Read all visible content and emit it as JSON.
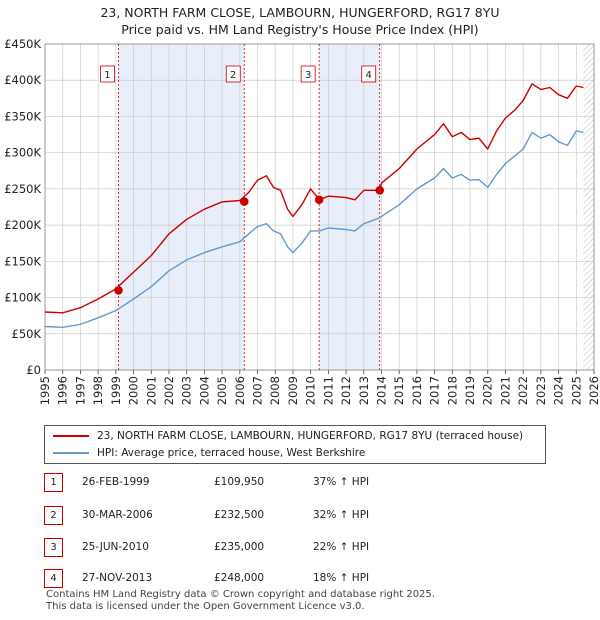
{
  "title_line1": "23, NORTH FARM CLOSE, LAMBOURN, HUNGERFORD, RG17 8YU",
  "title_line2": "Price paid vs. HM Land Registry's House Price Index (HPI)",
  "chart_data": {
    "type": "line",
    "title": "23, NORTH FARM CLOSE, LAMBOURN, HUNGERFORD, RG17 8YU — Price paid vs. HM Land Registry's House Price Index (HPI)",
    "xlim": [
      1995,
      2026
    ],
    "ylim": [
      0,
      450000
    ],
    "x_ticks": [
      "1995",
      "1996",
      "1997",
      "1998",
      "1999",
      "2000",
      "2001",
      "2002",
      "2003",
      "2004",
      "2005",
      "2006",
      "2007",
      "2008",
      "2009",
      "2010",
      "2011",
      "2012",
      "2013",
      "2014",
      "2015",
      "2016",
      "2017",
      "2018",
      "2019",
      "2020",
      "2021",
      "2022",
      "2023",
      "2024",
      "2025",
      "2026"
    ],
    "y_ticks": [
      {
        "value": 0,
        "label": "£0"
      },
      {
        "value": 50000,
        "label": "£50K"
      },
      {
        "value": 100000,
        "label": "£100K"
      },
      {
        "value": 150000,
        "label": "£150K"
      },
      {
        "value": 200000,
        "label": "£200K"
      },
      {
        "value": 250000,
        "label": "£250K"
      },
      {
        "value": 300000,
        "label": "£300K"
      },
      {
        "value": 350000,
        "label": "£350K"
      },
      {
        "value": 400000,
        "label": "£400K"
      },
      {
        "value": 450000,
        "label": "£450K"
      }
    ],
    "shaded_periods": [
      [
        1999.15,
        2006.25
      ],
      [
        2010.48,
        2013.9
      ]
    ],
    "data_end_x": 2025.4,
    "series": [
      {
        "name": "23, NORTH FARM CLOSE, LAMBOURN, HUNGERFORD, RG17 8YU (terraced house)",
        "color": "#cc0000",
        "points": [
          [
            1995,
            80000
          ],
          [
            1996,
            79000
          ],
          [
            1997,
            86000
          ],
          [
            1998,
            98000
          ],
          [
            1999,
            112000
          ],
          [
            2000,
            135000
          ],
          [
            2001,
            158000
          ],
          [
            2002,
            188000
          ],
          [
            2003,
            208000
          ],
          [
            2004,
            222000
          ],
          [
            2005,
            232000
          ],
          [
            2006,
            234000
          ],
          [
            2006.5,
            245000
          ],
          [
            2007,
            262000
          ],
          [
            2007.5,
            268000
          ],
          [
            2007.9,
            252000
          ],
          [
            2008.3,
            248000
          ],
          [
            2008.7,
            222000
          ],
          [
            2009,
            212000
          ],
          [
            2009.5,
            228000
          ],
          [
            2010,
            250000
          ],
          [
            2010.5,
            235000
          ],
          [
            2011,
            240000
          ],
          [
            2012,
            238000
          ],
          [
            2012.5,
            235000
          ],
          [
            2013,
            248000
          ],
          [
            2013.9,
            248000
          ],
          [
            2014,
            258000
          ],
          [
            2015,
            278000
          ],
          [
            2016,
            305000
          ],
          [
            2017,
            325000
          ],
          [
            2017.5,
            340000
          ],
          [
            2018,
            322000
          ],
          [
            2018.5,
            328000
          ],
          [
            2019,
            318000
          ],
          [
            2019.5,
            320000
          ],
          [
            2020,
            305000
          ],
          [
            2020.5,
            330000
          ],
          [
            2021,
            348000
          ],
          [
            2021.5,
            358000
          ],
          [
            2022,
            372000
          ],
          [
            2022.5,
            395000
          ],
          [
            2023,
            387000
          ],
          [
            2023.5,
            390000
          ],
          [
            2024,
            380000
          ],
          [
            2024.5,
            375000
          ],
          [
            2025,
            392000
          ],
          [
            2025.4,
            390000
          ]
        ]
      },
      {
        "name": "HPI: Average price, terraced house, West Berkshire",
        "color": "#6699cc",
        "points": [
          [
            1995,
            60000
          ],
          [
            1996,
            59000
          ],
          [
            1997,
            63000
          ],
          [
            1998,
            72000
          ],
          [
            1999,
            82000
          ],
          [
            2000,
            98000
          ],
          [
            2001,
            115000
          ],
          [
            2002,
            137000
          ],
          [
            2003,
            152000
          ],
          [
            2004,
            162000
          ],
          [
            2005,
            170000
          ],
          [
            2006,
            177000
          ],
          [
            2006.5,
            188000
          ],
          [
            2007,
            198000
          ],
          [
            2007.5,
            202000
          ],
          [
            2007.9,
            192000
          ],
          [
            2008.3,
            188000
          ],
          [
            2008.7,
            170000
          ],
          [
            2009,
            162000
          ],
          [
            2009.5,
            175000
          ],
          [
            2010,
            192000
          ],
          [
            2010.5,
            192000
          ],
          [
            2011,
            196000
          ],
          [
            2012,
            194000
          ],
          [
            2012.5,
            192000
          ],
          [
            2013,
            202000
          ],
          [
            2013.9,
            210000
          ],
          [
            2014,
            212000
          ],
          [
            2015,
            228000
          ],
          [
            2016,
            250000
          ],
          [
            2017,
            265000
          ],
          [
            2017.5,
            278000
          ],
          [
            2018,
            265000
          ],
          [
            2018.5,
            270000
          ],
          [
            2019,
            262000
          ],
          [
            2019.5,
            263000
          ],
          [
            2020,
            252000
          ],
          [
            2020.5,
            270000
          ],
          [
            2021,
            285000
          ],
          [
            2021.5,
            295000
          ],
          [
            2022,
            305000
          ],
          [
            2022.5,
            328000
          ],
          [
            2023,
            320000
          ],
          [
            2023.5,
            325000
          ],
          [
            2024,
            315000
          ],
          [
            2024.5,
            310000
          ],
          [
            2025,
            330000
          ],
          [
            2025.4,
            328000
          ]
        ]
      }
    ],
    "sale_markers": [
      {
        "label": "1",
        "x": 1999.15,
        "y": 109950
      },
      {
        "label": "2",
        "x": 2006.25,
        "y": 232500
      },
      {
        "label": "3",
        "x": 2010.48,
        "y": 235000
      },
      {
        "label": "4",
        "x": 2013.9,
        "y": 248000
      }
    ]
  },
  "legend": {
    "property_label": "23, NORTH FARM CLOSE, LAMBOURN, HUNGERFORD, RG17 8YU (terraced house)",
    "hpi_label": "HPI: Average price, terraced house, West Berkshire"
  },
  "transactions": [
    {
      "num": "1",
      "date": "26-FEB-1999",
      "price": "£109,950",
      "hpi": "37% ↑ HPI"
    },
    {
      "num": "2",
      "date": "30-MAR-2006",
      "price": "£232,500",
      "hpi": "32% ↑ HPI"
    },
    {
      "num": "3",
      "date": "25-JUN-2010",
      "price": "£235,000",
      "hpi": "22% ↑ HPI"
    },
    {
      "num": "4",
      "date": "27-NOV-2013",
      "price": "£248,000",
      "hpi": "18% ↑ HPI"
    }
  ],
  "footer_line1": "Contains HM Land Registry data © Crown copyright and database right 2025.",
  "footer_line2": "This data is licensed under the Open Government Licence v3.0.",
  "colors": {
    "property": "#cc0000",
    "hpi": "#6699cc",
    "shade": "#e8eefa",
    "grid": "#cccccc"
  }
}
